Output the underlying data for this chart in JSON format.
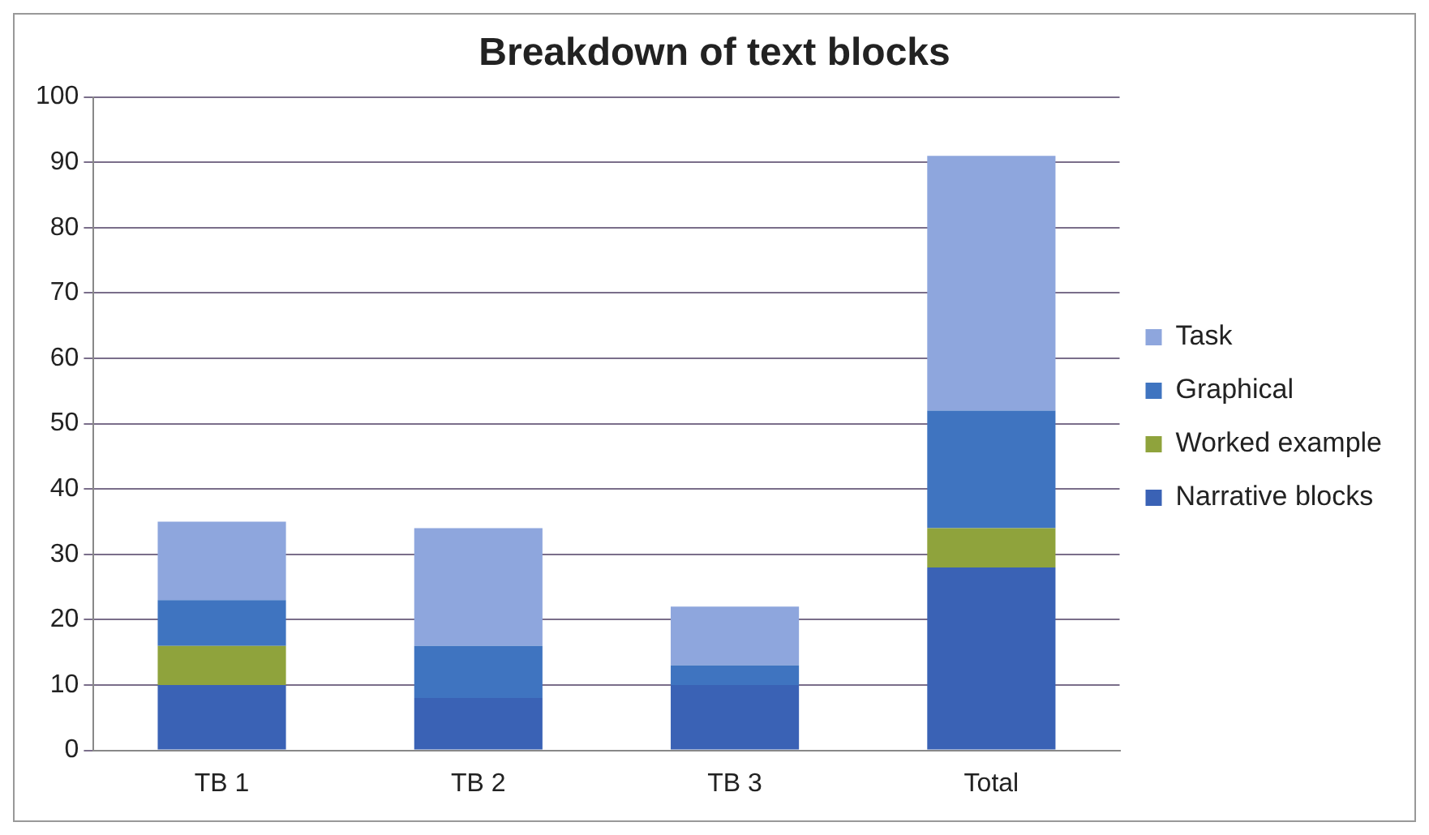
{
  "chart_data": {
    "type": "bar",
    "title": "Breakdown of text blocks",
    "categories": [
      "TB 1",
      "TB 2",
      "TB 3",
      "Total"
    ],
    "stacked": true,
    "series": [
      {
        "name": "Narrative blocks",
        "color": "#3a62b5",
        "values": [
          10,
          8,
          10,
          28
        ]
      },
      {
        "name": "Worked example",
        "color": "#8fa33c",
        "values": [
          6,
          0,
          0,
          6
        ]
      },
      {
        "name": "Graphical",
        "color": "#3f74c0",
        "values": [
          7,
          8,
          3,
          18
        ]
      },
      {
        "name": "Task",
        "color": "#8ea6dd",
        "values": [
          12,
          18,
          9,
          39
        ]
      }
    ],
    "ylim": [
      0,
      100
    ],
    "yticks": [
      0,
      10,
      20,
      30,
      40,
      50,
      60,
      70,
      80,
      90,
      100
    ],
    "grid": "y",
    "legend": "right"
  }
}
